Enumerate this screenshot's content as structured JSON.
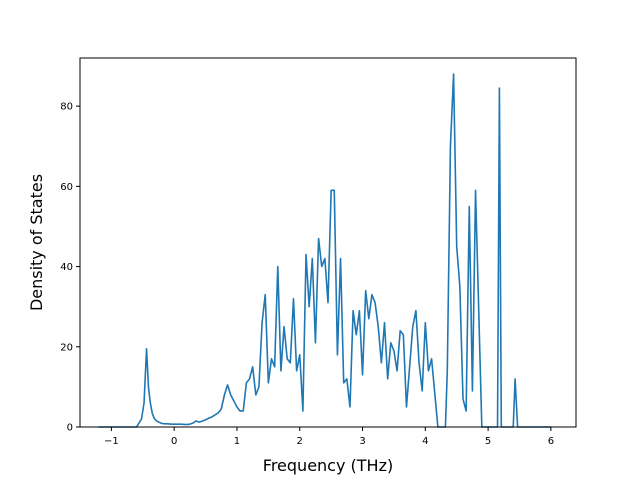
{
  "chart_data": {
    "type": "line",
    "title": "",
    "xlabel": "Frequency (THz)",
    "ylabel": "Density of States",
    "xlim": [
      -1.5,
      6.4
    ],
    "ylim": [
      0,
      92
    ],
    "x_ticks": [
      -1,
      0,
      1,
      2,
      3,
      4,
      5,
      6
    ],
    "y_ticks": [
      0,
      20,
      40,
      60,
      80
    ],
    "x_tick_labels": [
      "−1",
      "0",
      "1",
      "2",
      "3",
      "4",
      "5",
      "6"
    ],
    "y_tick_labels": [
      "0",
      "20",
      "40",
      "60",
      "80"
    ],
    "grid": false,
    "legend": false,
    "line_color": "#1f77b4",
    "series": [
      {
        "x": [
          -1.2,
          -0.6,
          -0.52,
          -0.48,
          -0.44,
          -0.41,
          -0.38,
          -0.35,
          -0.32,
          -0.28,
          -0.24,
          -0.2,
          -0.15,
          -0.1,
          -0.05,
          0.0,
          0.1,
          0.2,
          0.25,
          0.3,
          0.35,
          0.4,
          0.45,
          0.5,
          0.55,
          0.6,
          0.65,
          0.7,
          0.75,
          0.8,
          0.85,
          0.9,
          0.95,
          1.0,
          1.05,
          1.1,
          1.15,
          1.2,
          1.25,
          1.3,
          1.35,
          1.4,
          1.45,
          1.5,
          1.55,
          1.6,
          1.65,
          1.7,
          1.75,
          1.8,
          1.85,
          1.9,
          1.95,
          2.0,
          2.05,
          2.1,
          2.15,
          2.2,
          2.25,
          2.3,
          2.35,
          2.4,
          2.45,
          2.5,
          2.55,
          2.6,
          2.65,
          2.7,
          2.75,
          2.8,
          2.85,
          2.9,
          2.95,
          3.0,
          3.05,
          3.1,
          3.15,
          3.2,
          3.25,
          3.3,
          3.35,
          3.4,
          3.45,
          3.5,
          3.55,
          3.6,
          3.65,
          3.7,
          3.75,
          3.8,
          3.85,
          3.9,
          3.95,
          4.0,
          4.05,
          4.1,
          4.2,
          4.27,
          4.32,
          4.35,
          4.4,
          4.45,
          4.5,
          4.55,
          4.6,
          4.65,
          4.7,
          4.75,
          4.8,
          4.9,
          5.0,
          5.1,
          5.15,
          5.18,
          5.21,
          5.25,
          5.35,
          5.4,
          5.43,
          5.47,
          5.55,
          6.0
        ],
        "y": [
          0,
          0,
          2,
          6,
          19.5,
          10,
          6,
          3.5,
          2.2,
          1.5,
          1.2,
          0.9,
          0.8,
          0.8,
          0.7,
          0.7,
          0.7,
          0.6,
          0.7,
          1,
          1.5,
          1.2,
          1.5,
          1.8,
          2.2,
          2.5,
          3,
          3.5,
          4.5,
          8,
          10.5,
          8,
          6.5,
          5,
          4,
          4,
          11,
          12,
          15,
          8,
          10,
          26,
          33,
          11,
          17,
          15,
          40,
          14,
          25,
          17,
          16,
          32,
          14,
          18,
          4,
          43,
          30,
          42,
          21,
          47,
          40,
          42,
          31,
          59,
          59,
          18,
          42,
          11,
          12,
          5,
          29,
          23,
          29,
          13,
          34,
          27,
          33,
          31,
          25,
          16,
          26,
          12,
          21,
          19,
          14,
          24,
          23,
          5,
          15,
          25,
          29,
          16,
          9,
          26,
          14,
          17,
          0,
          0,
          0,
          14,
          70,
          88,
          45,
          35,
          7,
          4,
          55,
          9,
          59,
          0,
          0,
          0,
          0,
          84.5,
          0,
          0,
          0,
          0,
          12,
          0,
          0,
          0
        ]
      }
    ]
  }
}
